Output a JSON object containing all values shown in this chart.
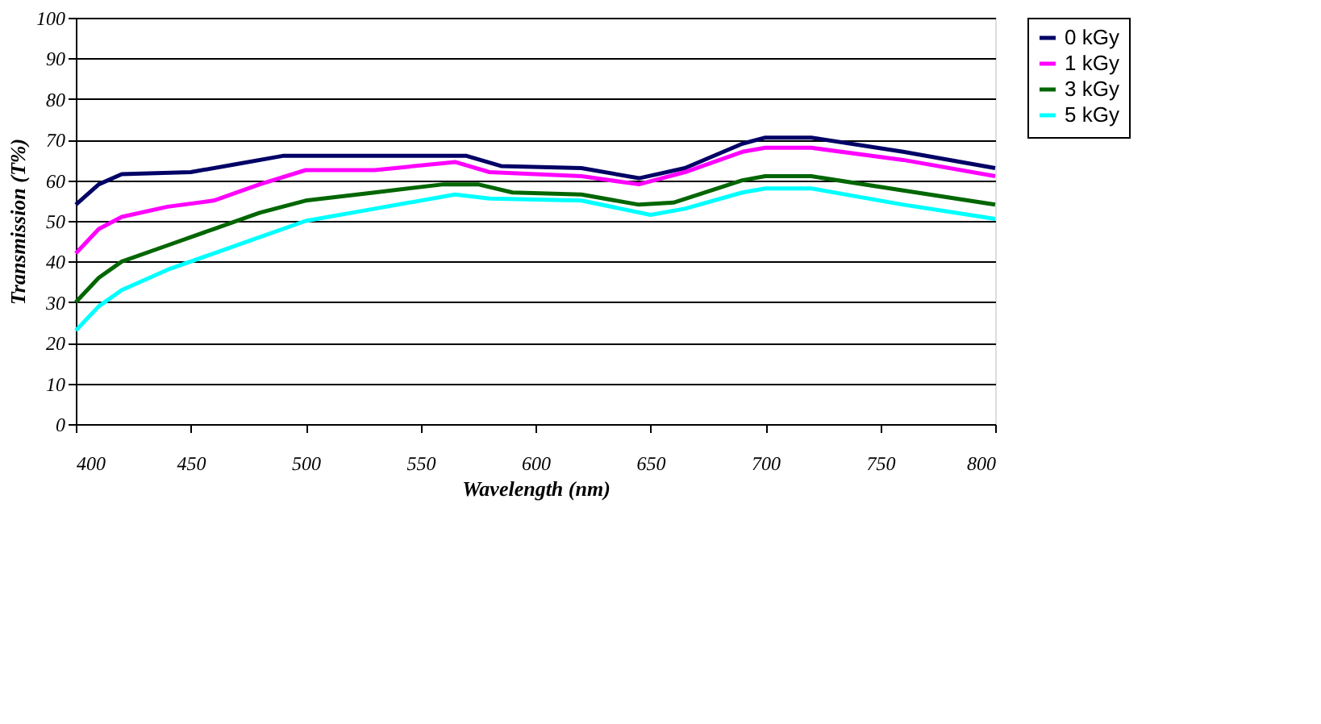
{
  "chart_data": {
    "type": "line",
    "xlabel": "Wavelength (nm)",
    "ylabel": "Transmission (T%)",
    "xlim": [
      400,
      800
    ],
    "xticks": [
      400,
      450,
      500,
      550,
      600,
      650,
      700,
      750,
      800
    ],
    "ylim": [
      0,
      100
    ],
    "yticks": [
      0,
      10,
      20,
      30,
      40,
      50,
      60,
      70,
      80,
      90,
      100
    ],
    "grid": "y",
    "legend": "right",
    "marker": "none",
    "line_style": "solid",
    "series": [
      {
        "name": "0 kGy",
        "color": "#000066",
        "x": [
          400,
          410,
          420,
          450,
          470,
          490,
          520,
          570,
          585,
          620,
          645,
          665,
          690,
          700,
          720,
          760,
          800
        ],
        "values": [
          54,
          59,
          61.5,
          62,
          64,
          66,
          66,
          66,
          63.5,
          63,
          60.5,
          63,
          69,
          70.5,
          70.5,
          67,
          63
        ]
      },
      {
        "name": "1 kGy",
        "color": "#ff00ff",
        "x": [
          400,
          410,
          420,
          440,
          460,
          480,
          500,
          530,
          565,
          580,
          620,
          645,
          665,
          690,
          700,
          720,
          760,
          800
        ],
        "values": [
          42,
          48,
          51,
          53.5,
          55,
          59,
          62.5,
          62.5,
          64.5,
          62,
          61,
          59,
          62,
          67,
          68,
          68,
          65,
          61
        ]
      },
      {
        "name": "3 kGy",
        "color": "#006600",
        "x": [
          400,
          410,
          420,
          440,
          460,
          480,
          500,
          530,
          560,
          575,
          590,
          620,
          645,
          660,
          690,
          700,
          720,
          760,
          800
        ],
        "values": [
          30,
          36,
          40,
          44,
          48,
          52,
          55,
          57,
          59,
          59,
          57,
          56.5,
          54,
          54.5,
          60,
          61,
          61,
          57.5,
          54
        ]
      },
      {
        "name": "5 kGy",
        "color": "#00ffff",
        "x": [
          400,
          410,
          420,
          440,
          460,
          480,
          500,
          530,
          565,
          580,
          620,
          650,
          665,
          690,
          700,
          720,
          760,
          800
        ],
        "values": [
          23,
          29,
          33,
          38,
          42,
          46,
          50,
          53,
          56.5,
          55.5,
          55,
          51.5,
          53,
          57,
          58,
          58,
          54,
          50.5
        ]
      }
    ]
  }
}
